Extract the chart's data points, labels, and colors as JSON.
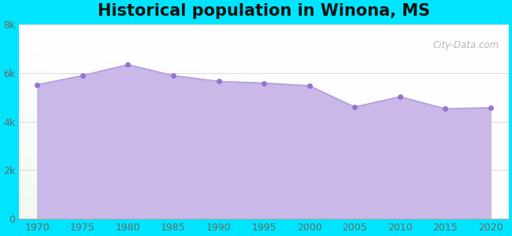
{
  "years": [
    1970,
    1975,
    1980,
    1985,
    1990,
    1995,
    2000,
    2005,
    2010,
    2015,
    2020
  ],
  "population": [
    5521,
    5900,
    6351,
    5900,
    5659,
    5590,
    5482,
    4603,
    5027,
    4530,
    4574
  ],
  "title": "Historical population in Winona, MS",
  "xlim": [
    1968,
    2022
  ],
  "ylim": [
    0,
    8000
  ],
  "yticks": [
    0,
    2000,
    4000,
    6000,
    8000
  ],
  "ytick_labels": [
    "0",
    "2k",
    "4k",
    "6k",
    "8k"
  ],
  "xticks": [
    1970,
    1975,
    1980,
    1985,
    1990,
    1995,
    2000,
    2005,
    2010,
    2015,
    2020
  ],
  "line_color": "#b39ddb",
  "fill_color": "#c9b8e8",
  "fill_alpha": 1.0,
  "marker_color": "#9575cd",
  "bg_color": "#00e5ff",
  "watermark": "City-Data.com",
  "title_fontsize": 15,
  "tick_fontsize": 9,
  "tick_color": "#666666"
}
